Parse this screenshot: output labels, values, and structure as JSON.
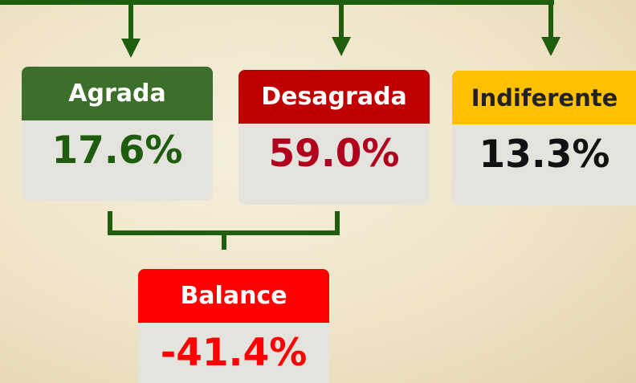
{
  "boxes": [
    {
      "label": "Agrada",
      "value": "17.6%"
    },
    {
      "label": "Desagrada",
      "value": "59.0%"
    },
    {
      "label": "Indiferente",
      "value": "13.3%"
    }
  ],
  "balance": {
    "label": "Balance",
    "value": "-41.4%"
  }
}
